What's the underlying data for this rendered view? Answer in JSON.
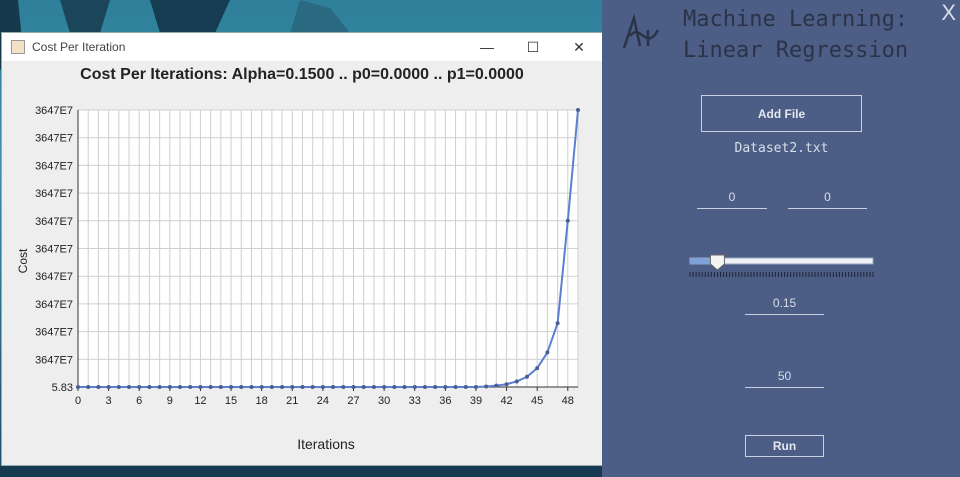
{
  "window": {
    "title": "Cost Per Iteration",
    "controls": {
      "minimize": "—",
      "maximize": "☐",
      "close": "✕"
    }
  },
  "chart_data": {
    "type": "line",
    "title": "Cost Per Iterations: Alpha=0.1500 .. p0=0.0000 ..  p1=0.0000",
    "xlabel": "Iterations",
    "ylabel": "Cost",
    "xlim": [
      0,
      49
    ],
    "x_ticks": [
      0,
      3,
      6,
      9,
      12,
      15,
      18,
      21,
      24,
      27,
      30,
      33,
      36,
      39,
      42,
      45,
      48
    ],
    "y_tick_labels": [
      "5.83",
      "3647E7",
      "3647E7",
      "3647E7",
      "3647E7",
      "3647E7",
      "3647E7",
      "3647E7",
      "3647E7",
      "3647E7",
      "3647E7"
    ],
    "grid": true,
    "series": [
      {
        "x": [
          0,
          1,
          2,
          3,
          4,
          5,
          6,
          7,
          8,
          9,
          10,
          11,
          12,
          13,
          14,
          15,
          16,
          17,
          18,
          19,
          20,
          21,
          22,
          23,
          24,
          25,
          26,
          27,
          28,
          29,
          30,
          31,
          32,
          33,
          34,
          35,
          36,
          37,
          38,
          39,
          40,
          41,
          42,
          43,
          44,
          45,
          46,
          47,
          48,
          49
        ],
        "values": [
          0,
          0,
          0,
          0,
          0,
          0,
          0,
          0,
          0,
          0,
          0,
          0,
          0,
          0,
          0,
          0,
          0,
          0,
          0,
          0,
          0,
          0,
          0,
          0,
          0,
          0,
          0,
          0,
          0,
          0,
          0,
          0,
          0,
          0,
          0,
          0,
          0,
          0,
          0,
          0,
          0.002,
          0.005,
          0.01,
          0.02,
          0.037,
          0.068,
          0.125,
          0.23,
          0.6,
          1.0
        ],
        "color": "#5b7fd1"
      }
    ]
  },
  "panel": {
    "title_line1": "Machine Learning:",
    "title_line2": "Linear Regression",
    "close": "X",
    "add_file": "Add File",
    "file_name": "Dataset2.txt",
    "p0": "0",
    "p1": "0",
    "alpha": "0.15",
    "alpha_slider": 0.15,
    "iterations": "50",
    "run": "Run"
  }
}
